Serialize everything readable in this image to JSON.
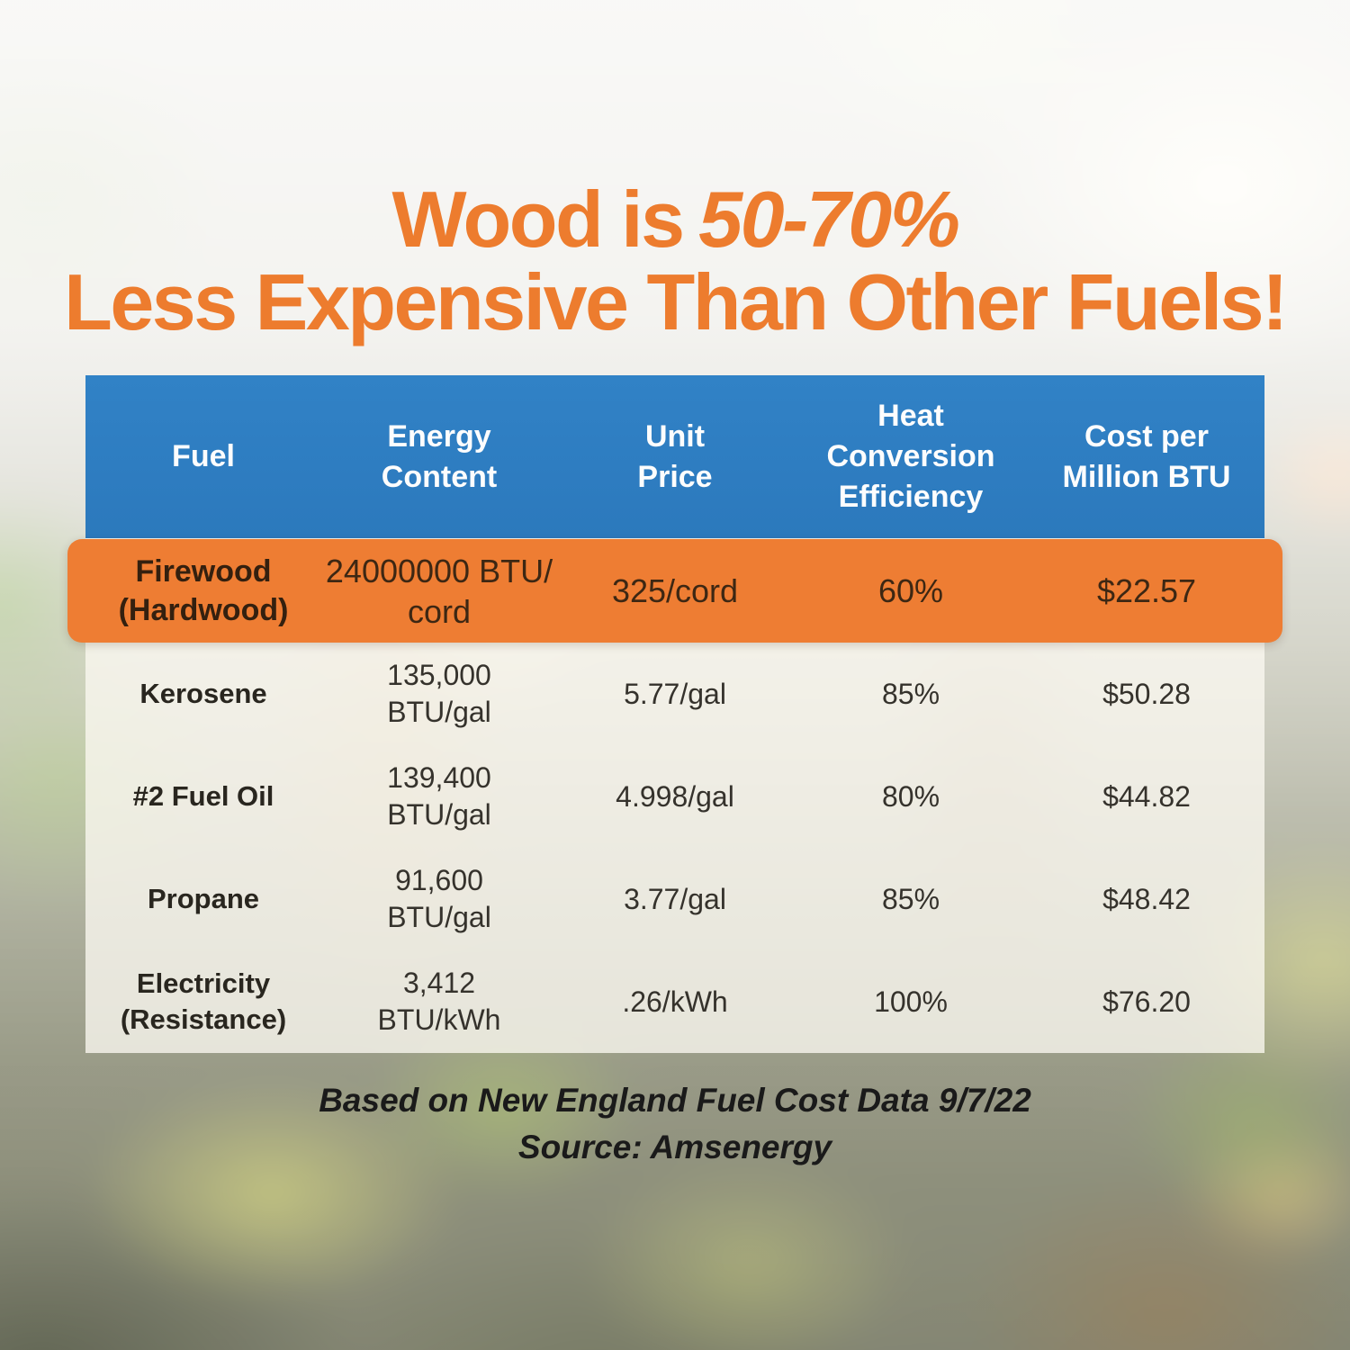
{
  "title": {
    "prefix": "Wood is",
    "highlight": "50-70%",
    "line2": "Less Expensive Than Other Fuels!"
  },
  "table": {
    "headers": [
      "Fuel",
      "Energy\nContent",
      "Unit\nPrice",
      "Heat\nConversion\nEfficiency",
      "Cost per\nMillion BTU"
    ],
    "highlight_row": {
      "fuel": "Firewood\n(Hardwood)",
      "energy": "24000000 BTU/\ncord",
      "price": "325/cord",
      "efficiency": "60%",
      "cost": "$22.57"
    },
    "rows": [
      {
        "fuel": "Kerosene",
        "energy": "135,000\nBTU/gal",
        "price": "5.77/gal",
        "efficiency": "85%",
        "cost": "$50.28"
      },
      {
        "fuel": "#2 Fuel Oil",
        "energy": "139,400\nBTU/gal",
        "price": "4.998/gal",
        "efficiency": "80%",
        "cost": "$44.82"
      },
      {
        "fuel": "Propane",
        "energy": "91,600\nBTU/gal",
        "price": "3.77/gal",
        "efficiency": "85%",
        "cost": "$48.42"
      },
      {
        "fuel": "Electricity\n(Resistance)",
        "energy": "3,412\nBTU/kWh",
        "price": ".26/kWh",
        "efficiency": "100%",
        "cost": "$76.20"
      }
    ]
  },
  "footer": {
    "line1": "Based on New England Fuel Cost Data 9/7/22",
    "line2": "Source: Amsenergy"
  },
  "colors": {
    "title_orange": "#ED7C2E",
    "header_blue": "#2E7DC1",
    "highlight_row_orange": "#EE7D33",
    "highlight_text_brown": "#3D2713",
    "header_text_white": "#FDFDFD",
    "body_text_charcoal": "#35322C",
    "footer_text_black": "#1A1A1A"
  },
  "chart_data": {
    "type": "table",
    "title": "Wood is 50-70% Less Expensive Than Other Fuels!",
    "columns": [
      "Fuel",
      "Energy Content",
      "Unit Price",
      "Heat Conversion Efficiency",
      "Cost per Million BTU"
    ],
    "rows": [
      [
        "Firewood (Hardwood)",
        "24000000 BTU/cord",
        "325/cord",
        "60%",
        "$22.57"
      ],
      [
        "Kerosene",
        "135,000 BTU/gal",
        "5.77/gal",
        "85%",
        "$50.28"
      ],
      [
        "#2 Fuel Oil",
        "139,400 BTU/gal",
        "4.998/gal",
        "80%",
        "$44.82"
      ],
      [
        "Propane",
        "91,600 BTU/gal",
        "3.77/gal",
        "85%",
        "$48.42"
      ],
      [
        "Electricity (Resistance)",
        "3,412 BTU/kWh",
        ".26/kWh",
        "100%",
        "$76.20"
      ]
    ],
    "highlighted_row": "Firewood (Hardwood)",
    "cost_per_million_btu_values": [
      22.57,
      50.28,
      44.82,
      48.42,
      76.2
    ],
    "source_note": "Based on New England Fuel Cost Data 9/7/22 — Source: Amsenergy"
  }
}
